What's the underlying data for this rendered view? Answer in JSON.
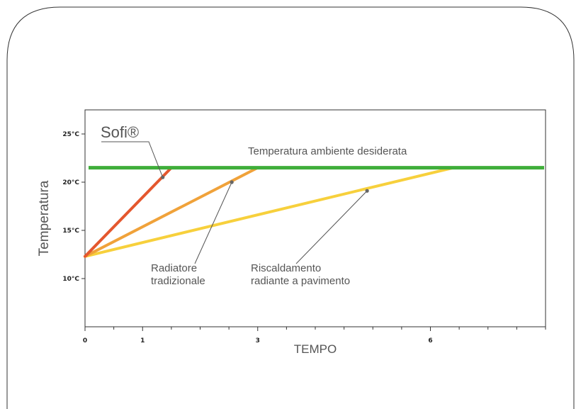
{
  "chart_data": {
    "type": "line",
    "title": "",
    "xlabel": "TEMPO",
    "ylabel": "Temperatura",
    "xlim": [
      0,
      8
    ],
    "ylim": [
      5,
      27.5
    ],
    "x_ticks": [
      {
        "value": 0,
        "label": "0"
      },
      {
        "value": 1,
        "label": "1"
      },
      {
        "value": 3,
        "label": "3"
      },
      {
        "value": 6,
        "label": "6"
      }
    ],
    "x_minor_ticks": [
      0.5,
      1.5,
      2,
      2.5,
      3.5,
      4,
      4.5,
      5,
      5.5,
      6.5,
      7,
      7.5,
      8
    ],
    "y_ticks": [
      {
        "value": 10,
        "label": "10°C"
      },
      {
        "value": 15,
        "label": "15°C"
      },
      {
        "value": 20,
        "label": "20°C"
      },
      {
        "value": 25,
        "label": "25°C"
      }
    ],
    "target": {
      "name": "Temperatura ambiente desiderata",
      "value": 21.5,
      "color": "#3fae3a"
    },
    "series": [
      {
        "name": "Sofi®",
        "color": "#e4572e",
        "points": [
          [
            0,
            12.3
          ],
          [
            1.5,
            21.5
          ]
        ],
        "marker": [
          1.35,
          20.5
        ]
      },
      {
        "name": "Radiatore tradizionale",
        "color": "#f0a23a",
        "points": [
          [
            0,
            12.3
          ],
          [
            3.0,
            21.5
          ]
        ],
        "marker": [
          2.55,
          20.0
        ]
      },
      {
        "name": "Riscaldamento radiante a pavimento",
        "color": "#f7d03c",
        "points": [
          [
            0,
            12.3
          ],
          [
            6.4,
            21.5
          ]
        ],
        "marker": [
          4.9,
          19.1
        ]
      }
    ],
    "annotations": {
      "sofi": "Sofi®",
      "radiatore_line1": "Radiatore",
      "radiatore_line2": "tradizionale",
      "radiante_line1": "Riscaldamento",
      "radiante_line2": "radiante a pavimento",
      "target_label": "Temperatura ambiente desiderata"
    },
    "grid": false,
    "legend": "none"
  }
}
